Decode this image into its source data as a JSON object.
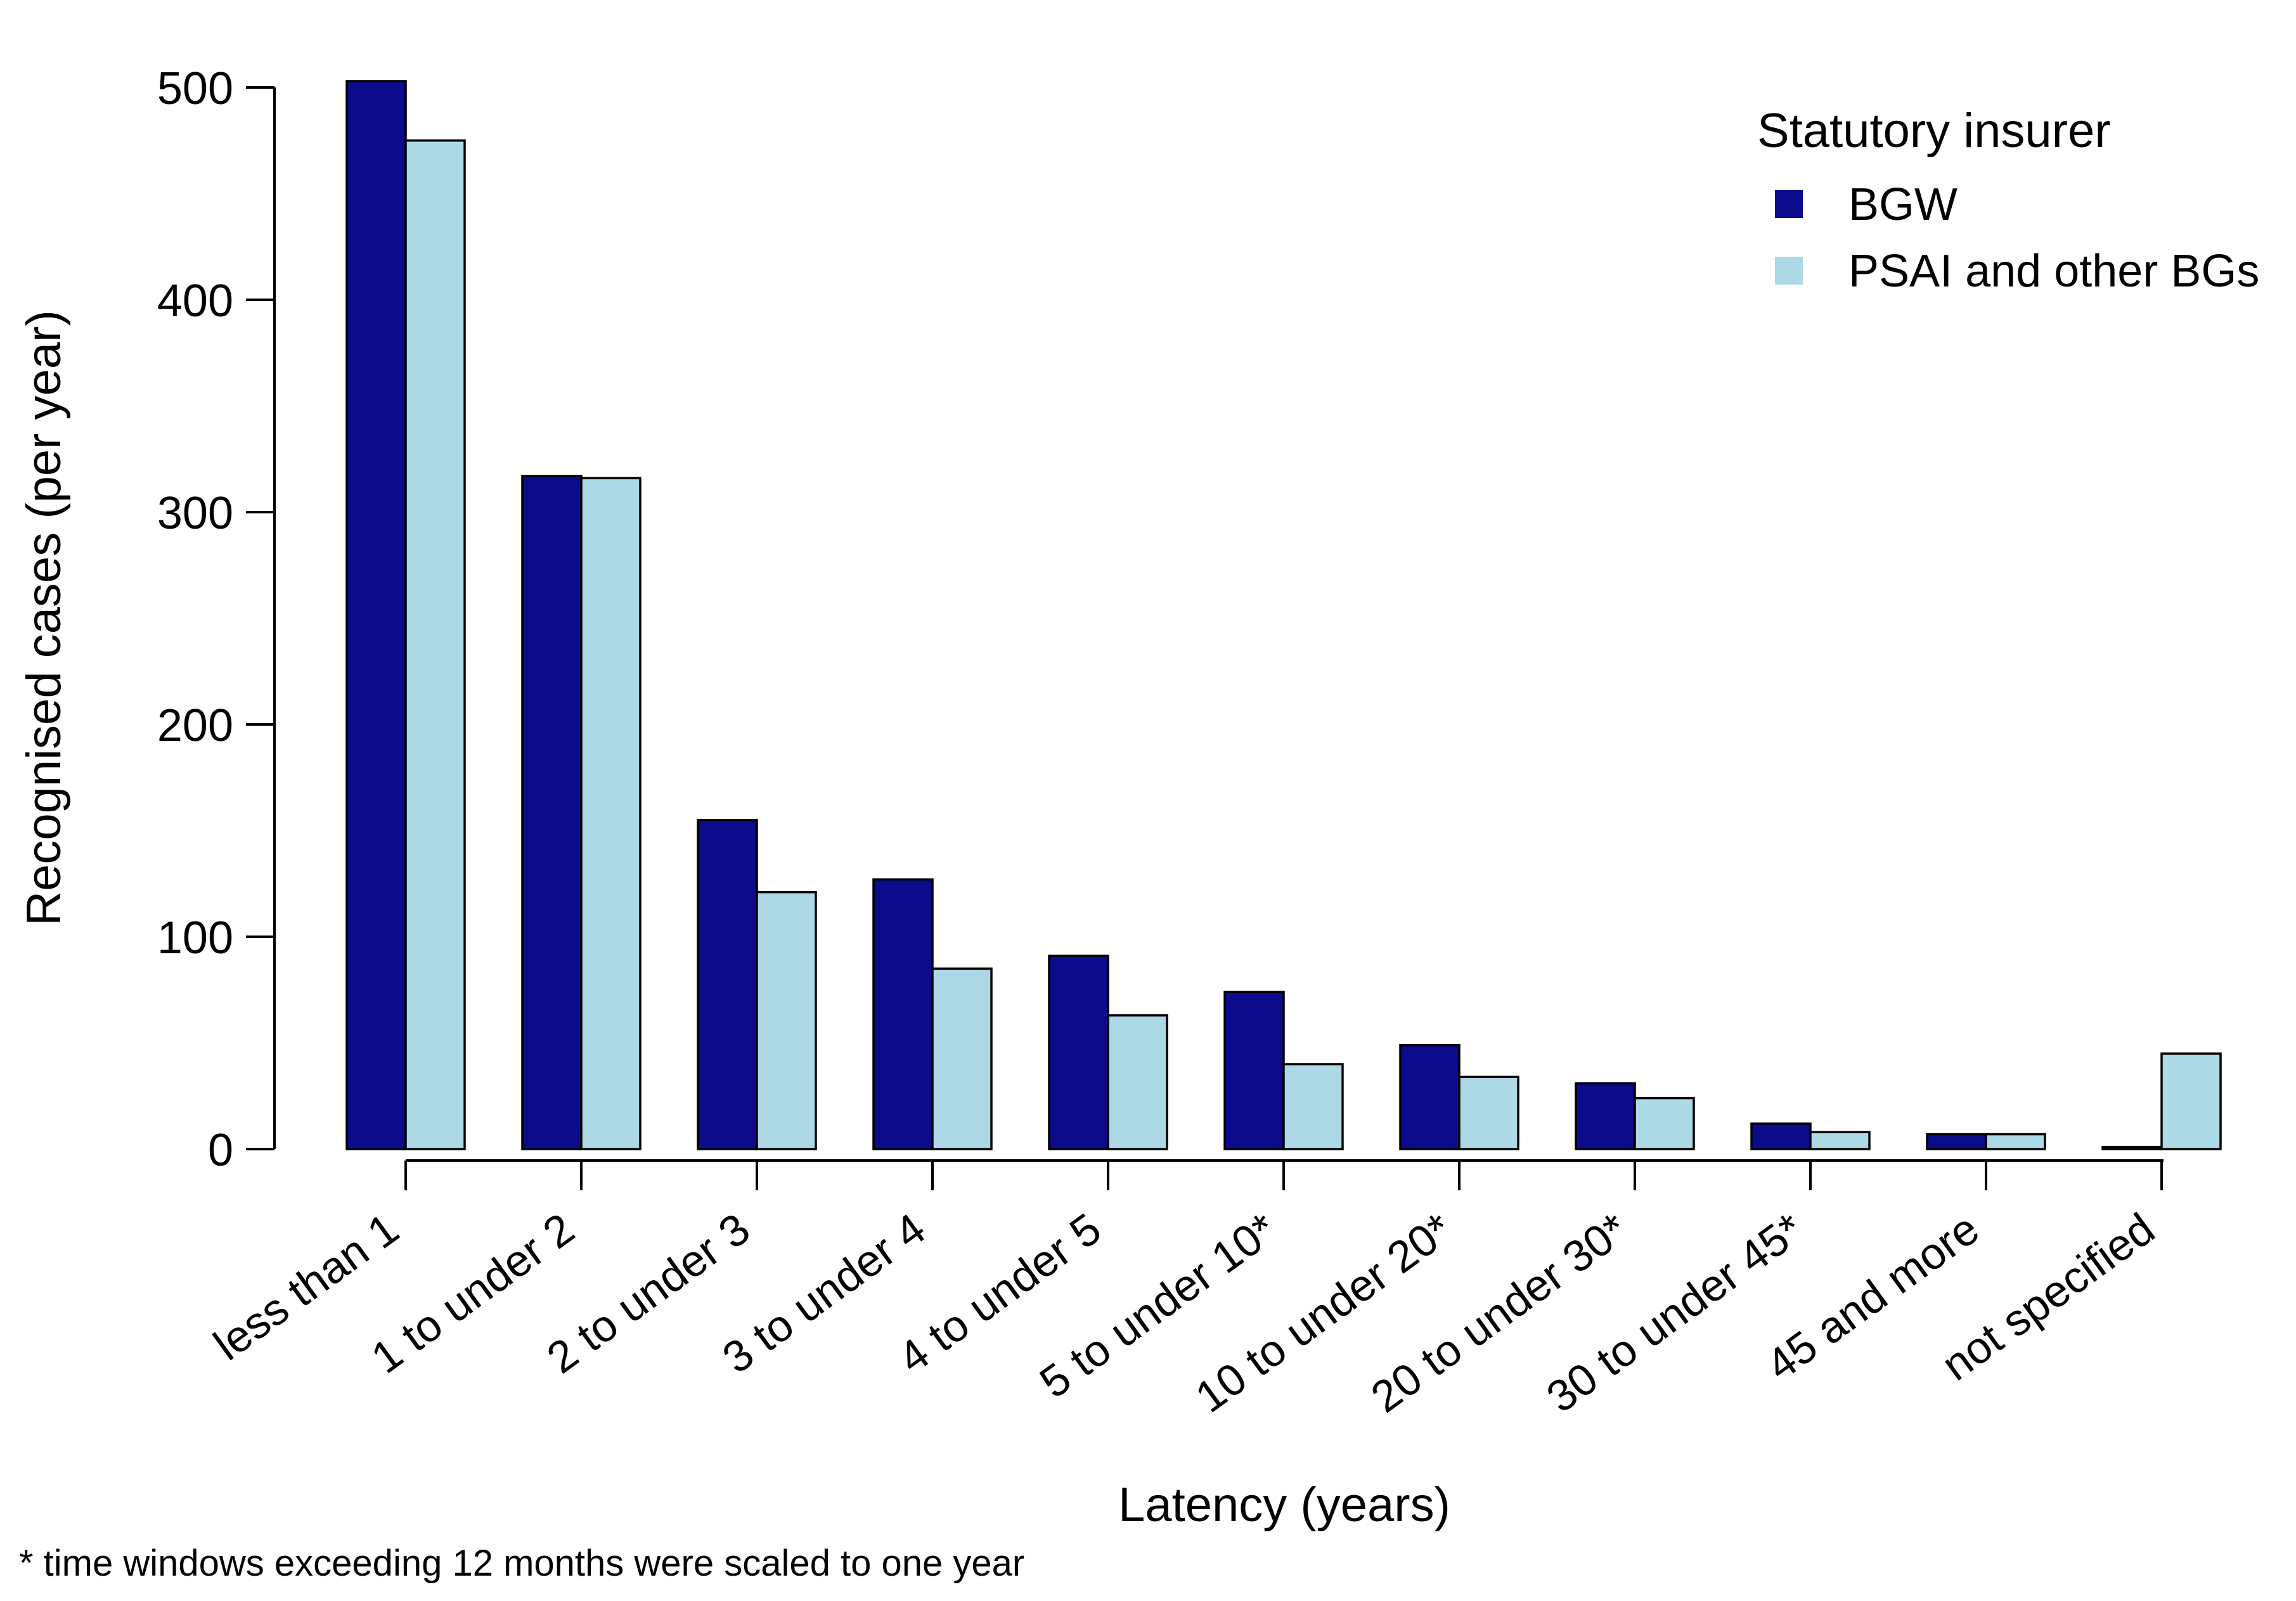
{
  "figure": {
    "background_color": "#FFFFFF",
    "text_color": "#000000"
  },
  "chart_data": {
    "type": "bar",
    "title": "",
    "xlabel": "Latency  (years)",
    "ylabel": "Recognised cases  (per year)",
    "categories": [
      "less than 1",
      "1 to under 2",
      "2 to under 3",
      "3 to under 4",
      "4 to under 5",
      "5 to under 10*",
      "10 to under 20*",
      "20 to under 30*",
      "30 to under 45*",
      "45 and more",
      "not specified"
    ],
    "series": [
      {
        "name": "BGW",
        "color": "#0B0B8B",
        "values": [
          503,
          317,
          155,
          127,
          91,
          74,
          49,
          31,
          12,
          7,
          1
        ]
      },
      {
        "name": "PSAI and other BGs",
        "color": "#ADD8E6",
        "values": [
          475,
          316,
          121,
          85,
          63,
          40,
          34,
          24,
          8,
          7,
          45
        ]
      }
    ],
    "bar_outline_color": "#000000",
    "ylim": [
      0,
      500
    ],
    "yticks": [
      "0",
      "100",
      "200",
      "300",
      "400",
      "500"
    ],
    "ytick_values": [
      0,
      100,
      200,
      300,
      400,
      500
    ],
    "grid": false,
    "legend_title": "Statutory insurer",
    "legend_position": "top-right",
    "category_label_rotation_deg": -36,
    "footnote": "* time windows exceeding 12 months were scaled to one year"
  }
}
